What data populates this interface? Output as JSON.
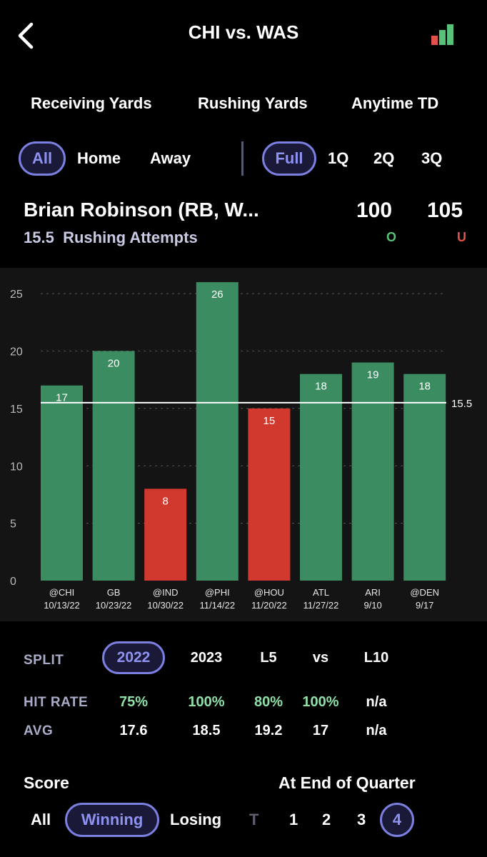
{
  "header": {
    "title": "CHI vs. WAS"
  },
  "categories": [
    "Receiving Yards",
    "Rushing Yards",
    "Anytime TD"
  ],
  "location_filter": {
    "options": [
      "All",
      "Home",
      "Away"
    ],
    "selected": "All"
  },
  "period_filter": {
    "options": [
      "Full",
      "1Q",
      "2Q",
      "3Q"
    ],
    "selected": "Full"
  },
  "player": {
    "name": "Brian Robinson (RB, W...",
    "line_value": "15.5",
    "stat": "Rushing Attempts",
    "over_odds": "100",
    "under_odds": "105",
    "over_label": "O",
    "under_label": "U"
  },
  "colors": {
    "hit": "#3c8c62",
    "miss": "#d2392e",
    "accent": "#7b7fe0",
    "over": "#59c27a",
    "under": "#e2524a"
  },
  "chart_data": {
    "type": "bar",
    "categories": [
      "@CHI",
      "GB",
      "@IND",
      "@PHI",
      "@HOU",
      "ATL",
      "ARI",
      "@DEN"
    ],
    "dates": [
      "10/13/22",
      "10/23/22",
      "10/30/22",
      "11/14/22",
      "11/20/22",
      "11/27/22",
      "9/10",
      "9/17"
    ],
    "values": [
      17,
      20,
      8,
      26,
      15,
      18,
      19,
      18
    ],
    "line": 15.5,
    "line_label": "15.5",
    "ylim": [
      0,
      27
    ],
    "yticks": [
      0,
      5,
      10,
      15,
      20,
      25
    ],
    "grid": true
  },
  "split": {
    "label": "SPLIT",
    "options": [
      "2022",
      "2023",
      "L5",
      "vs",
      "L10"
    ],
    "selected": "2022",
    "hit_rate_label": "HIT RATE",
    "hit_rates": [
      "75%",
      "100%",
      "80%",
      "100%",
      "n/a"
    ],
    "avg_label": "AVG",
    "avgs": [
      "17.6",
      "18.5",
      "19.2",
      "17",
      "n/a"
    ]
  },
  "score": {
    "label": "Score",
    "options": [
      "All",
      "Winning",
      "Losing"
    ],
    "selected": "Winning"
  },
  "quarter": {
    "label": "At End of Quarter",
    "options": [
      "T",
      "1",
      "2",
      "3",
      "4"
    ],
    "selected": "4"
  }
}
